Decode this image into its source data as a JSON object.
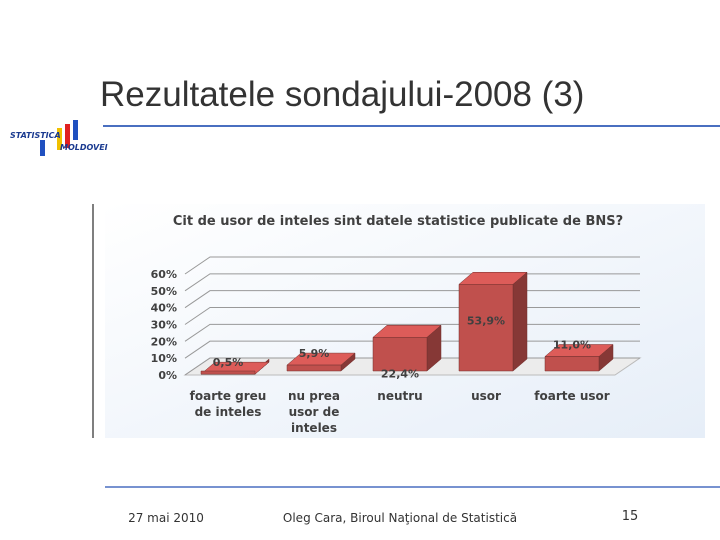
{
  "slide": {
    "title": "Rezultatele sondajului-2008 (3)",
    "logo_top": "STATISTICA",
    "logo_bottom": "MOLDOVEI",
    "date": "27 mai 2010",
    "author": "Oleg Cara, Biroul Naţional de Statistică",
    "page": "15"
  },
  "chart_data": {
    "type": "bar3d",
    "title": "Cit de usor de inteles sint datele statistice publicate de BNS?",
    "categories": [
      "foarte greu de inteles",
      "nu prea usor de inteles",
      "neutru",
      "usor",
      "foarte usor"
    ],
    "values": [
      0.5,
      5.9,
      22.4,
      53.9,
      11.0
    ],
    "value_labels": [
      "0,5%",
      "5,9%",
      "22,4%",
      "53,9%",
      "11,0%"
    ],
    "color": "#c0504d",
    "ylim": [
      0,
      60
    ],
    "yticks": [
      {
        "value": 0,
        "label": "0%"
      },
      {
        "value": 10,
        "label": "10%"
      },
      {
        "value": 20,
        "label": "20%"
      },
      {
        "value": 30,
        "label": "30%"
      },
      {
        "value": 40,
        "label": "40%"
      },
      {
        "value": 50,
        "label": "50%"
      },
      {
        "value": 60,
        "label": "60%"
      }
    ],
    "grid": true
  }
}
